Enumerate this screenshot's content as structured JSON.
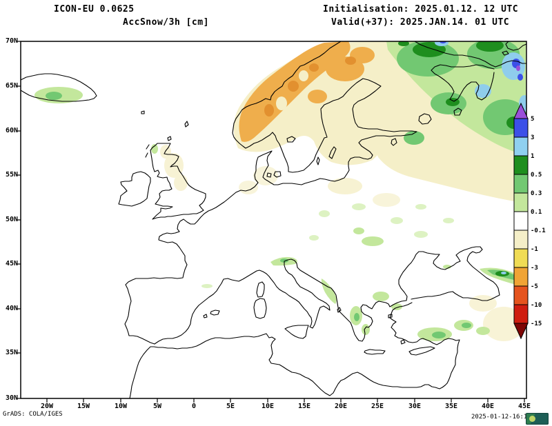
{
  "header": {
    "model": "ICON-EU 0.0625",
    "variable": "AccSnow/3h [cm]",
    "initialisation": "Initialisation: 2025.01.12. 12 UTC",
    "valid": "Valid(+37): 2025.JAN.14. 01 UTC"
  },
  "axes": {
    "lat_ticks": [
      "70N",
      "65N",
      "60N",
      "55N",
      "50N",
      "45N",
      "40N",
      "35N",
      "30N"
    ],
    "lon_ticks": [
      "20W",
      "15W",
      "10W",
      "5W",
      "0",
      "5E",
      "10E",
      "15E",
      "20E",
      "25E",
      "30E",
      "35E",
      "40E",
      "45E"
    ]
  },
  "colorbar": {
    "unit": "cm",
    "levels": [
      "5",
      "3",
      "1",
      "0.5",
      "0.3",
      "0.1",
      "-0.1",
      "-1",
      "-3",
      "-5",
      "-10",
      "-15"
    ],
    "colors": [
      "#9a4fd9",
      "#3c50e8",
      "#8fd0f0",
      "#1e8e1e",
      "#72c872",
      "#c3e79c",
      "#ffffff",
      "#f5efc8",
      "#f0dc55",
      "#f0a435",
      "#e5541e",
      "#cf1d10",
      "#7e0505"
    ]
  },
  "footer": {
    "credit": "GrADS: COLA/IGES",
    "timestamp": "2025-01-12-16:17"
  }
}
